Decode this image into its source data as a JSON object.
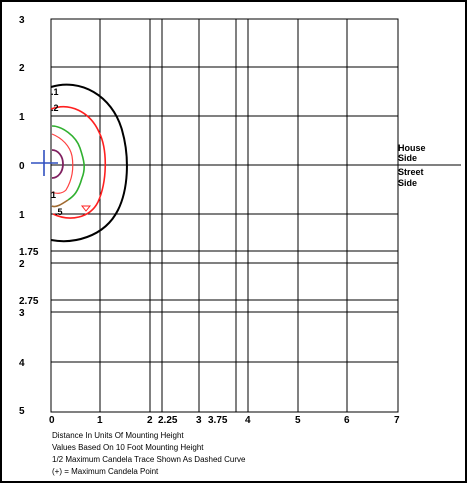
{
  "axis": {
    "y_labels": [
      "3",
      "2",
      "1",
      "0",
      "1",
      "1.75",
      "2",
      "2.75",
      "3",
      "4",
      "5"
    ],
    "x_labels": [
      "0",
      "1",
      "2",
      "2.25",
      "3",
      "3.75",
      "4",
      "5",
      "6",
      "7"
    ]
  },
  "side_labels": {
    "house_1": "House",
    "house_2": "Side",
    "street_1": "Street",
    "street_2": "Side"
  },
  "contour_labels": [
    ".1",
    ".2",
    "1",
    ".5"
  ],
  "notes": {
    "line1": "Distance In Units Of Mounting Height",
    "line2": "Values Based On 10 Foot Mounting Height",
    "line3": "1/2 Maximum Candela Trace Shown As Dashed Curve",
    "line4": "(+) = Maximum Candela Point"
  },
  "colors": {
    "contour_01": "#000000",
    "contour_02": "#ff2020",
    "contour_05": "#30b030",
    "contour_1": "#ff4040",
    "contour_inner": "#802060",
    "max_point": "#3050c0"
  }
}
